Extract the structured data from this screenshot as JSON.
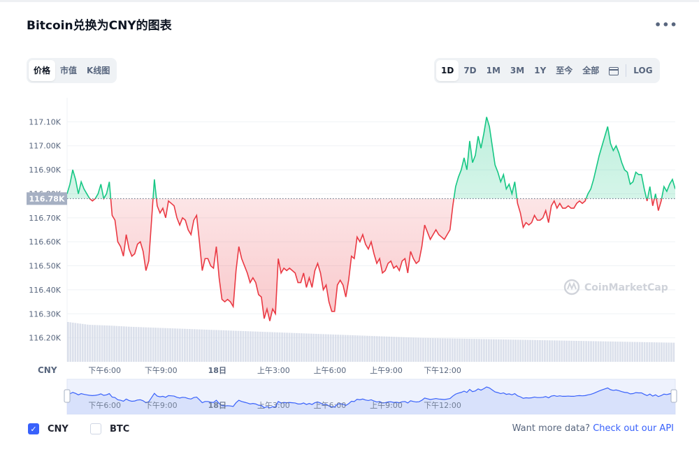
{
  "header": {
    "title": "Bitcoin兑换为CNY的图表",
    "more_icon": "•••"
  },
  "chart_type_tabs": [
    {
      "label": "价格",
      "active": true
    },
    {
      "label": "市值",
      "active": false
    },
    {
      "label": "K线图",
      "active": false
    }
  ],
  "range_tabs": [
    {
      "label": "1D",
      "active": true
    },
    {
      "label": "7D",
      "active": false
    },
    {
      "label": "1M",
      "active": false
    },
    {
      "label": "3M",
      "active": false
    },
    {
      "label": "1Y",
      "active": false
    },
    {
      "label": "至今",
      "active": false
    },
    {
      "label": "全部",
      "active": false
    }
  ],
  "log_label": "LOG",
  "chart_data": {
    "type": "area",
    "currency_label": "CNY",
    "y_ticks": [
      "117.10K",
      "117.00K",
      "116.90K",
      "116.80K",
      "116.70K",
      "116.60K",
      "116.50K",
      "116.40K",
      "116.30K",
      "116.20K"
    ],
    "y_tick_values": [
      117.1,
      117.0,
      116.9,
      116.8,
      116.7,
      116.6,
      116.5,
      116.4,
      116.3,
      116.2
    ],
    "x_ticks": [
      "下午6:00",
      "下午9:00",
      "18日",
      "上午3:00",
      "上午6:00",
      "上午9:00",
      "下午12:00"
    ],
    "x_tick_hours": [
      2,
      5,
      8,
      11,
      14,
      17,
      20
    ],
    "ylim": [
      116.1,
      117.2
    ],
    "baseline": 116.78,
    "baseline_label": "116.78K",
    "colors": {
      "up": "#16c784",
      "down": "#ea3943",
      "axis_text": "#58667e",
      "volume": "#cfd6e4",
      "nav": "#3861fb"
    },
    "price_unit": "K CNY",
    "price_points": [
      [
        0.0,
        116.8
      ],
      [
        0.15,
        116.84
      ],
      [
        0.3,
        116.9
      ],
      [
        0.45,
        116.86
      ],
      [
        0.6,
        116.8
      ],
      [
        0.75,
        116.85
      ],
      [
        0.9,
        116.82
      ],
      [
        1.05,
        116.8
      ],
      [
        1.2,
        116.78
      ],
      [
        1.35,
        116.77
      ],
      [
        1.5,
        116.78
      ],
      [
        1.65,
        116.8
      ],
      [
        1.8,
        116.84
      ],
      [
        1.95,
        116.78
      ],
      [
        2.1,
        116.8
      ],
      [
        2.25,
        116.85
      ],
      [
        2.4,
        116.71
      ],
      [
        2.55,
        116.69
      ],
      [
        2.7,
        116.6
      ],
      [
        2.85,
        116.58
      ],
      [
        3.0,
        116.54
      ],
      [
        3.15,
        116.63
      ],
      [
        3.3,
        116.57
      ],
      [
        3.45,
        116.54
      ],
      [
        3.6,
        116.55
      ],
      [
        3.75,
        116.59
      ],
      [
        3.9,
        116.6
      ],
      [
        4.05,
        116.56
      ],
      [
        4.2,
        116.48
      ],
      [
        4.35,
        116.52
      ],
      [
        4.5,
        116.69
      ],
      [
        4.65,
        116.86
      ],
      [
        4.8,
        116.75
      ],
      [
        4.95,
        116.72
      ],
      [
        5.1,
        116.74
      ],
      [
        5.25,
        116.7
      ],
      [
        5.4,
        116.77
      ],
      [
        5.55,
        116.76
      ],
      [
        5.7,
        116.75
      ],
      [
        5.85,
        116.7
      ],
      [
        6.0,
        116.67
      ],
      [
        6.15,
        116.7
      ],
      [
        6.3,
        116.69
      ],
      [
        6.45,
        116.65
      ],
      [
        6.6,
        116.63
      ],
      [
        6.75,
        116.69
      ],
      [
        6.9,
        116.71
      ],
      [
        7.05,
        116.6
      ],
      [
        7.2,
        116.48
      ],
      [
        7.35,
        116.53
      ],
      [
        7.5,
        116.53
      ],
      [
        7.65,
        116.5
      ],
      [
        7.8,
        116.49
      ],
      [
        7.95,
        116.58
      ],
      [
        8.1,
        116.45
      ],
      [
        8.25,
        116.36
      ],
      [
        8.4,
        116.35
      ],
      [
        8.55,
        116.36
      ],
      [
        8.7,
        116.35
      ],
      [
        8.85,
        116.33
      ],
      [
        9.0,
        116.48
      ],
      [
        9.15,
        116.58
      ],
      [
        9.3,
        116.53
      ],
      [
        9.45,
        116.5
      ],
      [
        9.6,
        116.47
      ],
      [
        9.75,
        116.43
      ],
      [
        9.9,
        116.45
      ],
      [
        10.05,
        116.43
      ],
      [
        10.2,
        116.38
      ],
      [
        10.35,
        116.37
      ],
      [
        10.5,
        116.28
      ],
      [
        10.65,
        116.32
      ],
      [
        10.8,
        116.27
      ],
      [
        10.95,
        116.32
      ],
      [
        11.1,
        116.3
      ],
      [
        11.25,
        116.53
      ],
      [
        11.4,
        116.47
      ],
      [
        11.55,
        116.49
      ],
      [
        11.7,
        116.48
      ],
      [
        11.85,
        116.49
      ],
      [
        12.0,
        116.48
      ],
      [
        12.15,
        116.47
      ],
      [
        12.3,
        116.43
      ],
      [
        12.45,
        116.43
      ],
      [
        12.6,
        116.47
      ],
      [
        12.75,
        116.41
      ],
      [
        12.9,
        116.45
      ],
      [
        13.05,
        116.41
      ],
      [
        13.2,
        116.48
      ],
      [
        13.35,
        116.51
      ],
      [
        13.5,
        116.47
      ],
      [
        13.65,
        116.4
      ],
      [
        13.8,
        116.42
      ],
      [
        13.95,
        116.35
      ],
      [
        14.1,
        116.31
      ],
      [
        14.25,
        116.31
      ],
      [
        14.4,
        116.42
      ],
      [
        14.55,
        116.44
      ],
      [
        14.7,
        116.42
      ],
      [
        14.85,
        116.37
      ],
      [
        15.0,
        116.44
      ],
      [
        15.15,
        116.54
      ],
      [
        15.3,
        116.53
      ],
      [
        15.45,
        116.62
      ],
      [
        15.6,
        116.6
      ],
      [
        15.75,
        116.63
      ],
      [
        15.9,
        116.59
      ],
      [
        16.05,
        116.57
      ],
      [
        16.2,
        116.6
      ],
      [
        16.35,
        116.55
      ],
      [
        16.5,
        116.51
      ],
      [
        16.65,
        116.53
      ],
      [
        16.8,
        116.47
      ],
      [
        16.95,
        116.48
      ],
      [
        17.1,
        116.51
      ],
      [
        17.25,
        116.52
      ],
      [
        17.4,
        116.49
      ],
      [
        17.55,
        116.5
      ],
      [
        17.7,
        116.48
      ],
      [
        17.85,
        116.52
      ],
      [
        18.0,
        116.53
      ],
      [
        18.15,
        116.47
      ],
      [
        18.3,
        116.56
      ],
      [
        18.45,
        116.53
      ],
      [
        18.6,
        116.51
      ],
      [
        18.75,
        116.52
      ],
      [
        18.9,
        116.58
      ],
      [
        19.05,
        116.67
      ],
      [
        19.2,
        116.64
      ],
      [
        19.35,
        116.61
      ],
      [
        19.5,
        116.63
      ],
      [
        19.65,
        116.65
      ],
      [
        19.8,
        116.63
      ],
      [
        19.95,
        116.62
      ],
      [
        20.1,
        116.61
      ],
      [
        20.25,
        116.63
      ],
      [
        20.4,
        116.65
      ],
      [
        20.55,
        116.75
      ],
      [
        20.7,
        116.83
      ],
      [
        20.85,
        116.87
      ],
      [
        21.0,
        116.9
      ],
      [
        21.15,
        116.95
      ],
      [
        21.3,
        116.9
      ],
      [
        21.45,
        117.02
      ],
      [
        21.6,
        116.93
      ],
      [
        21.75,
        116.96
      ],
      [
        21.9,
        117.04
      ],
      [
        22.05,
        116.99
      ],
      [
        22.2,
        117.05
      ],
      [
        22.35,
        117.12
      ],
      [
        22.5,
        117.08
      ],
      [
        22.65,
        117.0
      ],
      [
        22.8,
        116.92
      ],
      [
        22.95,
        116.89
      ],
      [
        23.1,
        116.85
      ],
      [
        23.25,
        116.88
      ],
      [
        23.4,
        116.82
      ],
      [
        23.55,
        116.84
      ],
      [
        23.7,
        116.8
      ],
      [
        23.85,
        116.85
      ],
      [
        24.0,
        116.76
      ],
      [
        24.15,
        116.72
      ],
      [
        24.3,
        116.66
      ],
      [
        24.45,
        116.68
      ],
      [
        24.6,
        116.67
      ],
      [
        24.75,
        116.68
      ],
      [
        24.9,
        116.71
      ],
      [
        25.05,
        116.69
      ],
      [
        25.2,
        116.69
      ],
      [
        25.35,
        116.7
      ],
      [
        25.5,
        116.73
      ],
      [
        25.65,
        116.68
      ],
      [
        25.8,
        116.75
      ],
      [
        25.95,
        116.77
      ],
      [
        26.1,
        116.74
      ],
      [
        26.25,
        116.76
      ],
      [
        26.4,
        116.74
      ],
      [
        26.55,
        116.74
      ],
      [
        26.7,
        116.75
      ],
      [
        26.85,
        116.74
      ],
      [
        27.0,
        116.74
      ],
      [
        27.15,
        116.76
      ],
      [
        27.3,
        116.77
      ],
      [
        27.45,
        116.76
      ],
      [
        27.6,
        116.77
      ],
      [
        27.75,
        116.8
      ],
      [
        27.9,
        116.82
      ],
      [
        28.05,
        116.86
      ],
      [
        28.2,
        116.91
      ],
      [
        28.35,
        116.96
      ],
      [
        28.5,
        117.0
      ],
      [
        28.65,
        117.04
      ],
      [
        28.8,
        117.08
      ],
      [
        28.95,
        117.01
      ],
      [
        29.1,
        116.98
      ],
      [
        29.25,
        117.0
      ],
      [
        29.4,
        116.97
      ],
      [
        29.55,
        116.93
      ],
      [
        29.7,
        116.9
      ],
      [
        29.85,
        116.89
      ],
      [
        30.0,
        116.84
      ],
      [
        30.15,
        116.85
      ],
      [
        30.3,
        116.89
      ],
      [
        30.45,
        116.88
      ],
      [
        30.6,
        116.88
      ],
      [
        30.75,
        116.82
      ],
      [
        30.9,
        116.77
      ],
      [
        31.05,
        116.83
      ],
      [
        31.2,
        116.75
      ],
      [
        31.35,
        116.8
      ],
      [
        31.5,
        116.73
      ],
      [
        31.65,
        116.77
      ],
      [
        31.8,
        116.83
      ],
      [
        31.95,
        116.81
      ],
      [
        32.1,
        116.84
      ],
      [
        32.25,
        116.86
      ],
      [
        32.4,
        116.82
      ]
    ],
    "volume_relative": [
      1.0,
      0.93,
      0.91,
      0.88,
      0.86,
      0.84,
      0.82,
      0.8,
      0.78,
      0.76,
      0.74,
      0.72,
      0.7,
      0.68,
      0.66,
      0.64,
      0.62,
      0.6,
      0.59,
      0.58,
      0.57,
      0.56,
      0.55,
      0.54,
      0.53,
      0.52,
      0.51,
      0.5,
      0.49,
      0.48
    ]
  },
  "navigator": {
    "x_ticks": [
      "下午6:00",
      "下午9:00",
      "18日",
      "上午3:00",
      "上午6:00",
      "上午9:00",
      "下午12:00"
    ]
  },
  "watermark": {
    "text": "CoinMarketCap"
  },
  "bottom": {
    "options": [
      {
        "label": "CNY",
        "checked": true
      },
      {
        "label": "BTC",
        "checked": false
      }
    ],
    "more_data_text": "Want more data?",
    "more_data_link": "Check out our API"
  }
}
